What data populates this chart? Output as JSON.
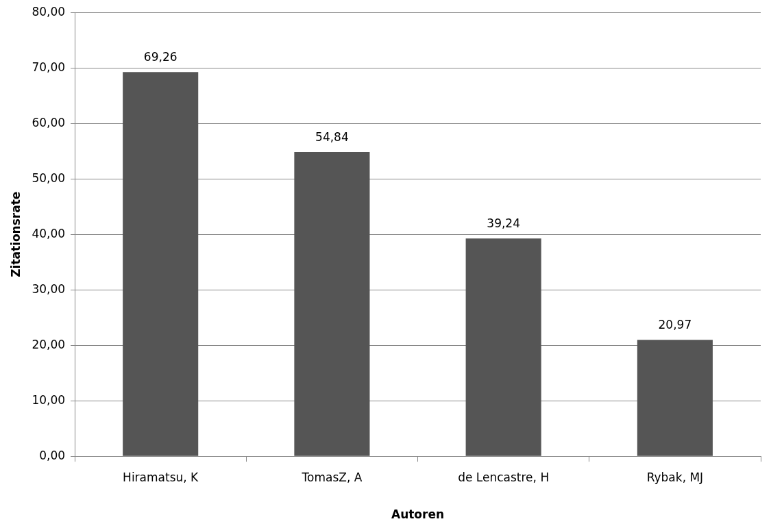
{
  "chart_data": {
    "type": "bar",
    "xlabel": "Autoren",
    "ylabel": "Zitationsrate",
    "categories": [
      "Hiramatsu, K",
      "TomasZ, A",
      "de Lencastre, H",
      "Rybak, MJ"
    ],
    "values": [
      69.26,
      54.84,
      39.24,
      20.97
    ],
    "value_labels": [
      "69,26",
      "54,84",
      "39,24",
      "20,97"
    ],
    "color": "#555555",
    "ylim": [
      0,
      80
    ],
    "yticks": [
      {
        "value": 0,
        "label": "0,00"
      },
      {
        "value": 10,
        "label": "10,00"
      },
      {
        "value": 20,
        "label": "20,00"
      },
      {
        "value": 30,
        "label": "30,00"
      },
      {
        "value": 40,
        "label": "40,00"
      },
      {
        "value": 50,
        "label": "50,00"
      },
      {
        "value": 60,
        "label": "60,00"
      },
      {
        "value": 70,
        "label": "70,00"
      },
      {
        "value": 80,
        "label": "80,00"
      }
    ],
    "grid": "y",
    "legend": false
  }
}
